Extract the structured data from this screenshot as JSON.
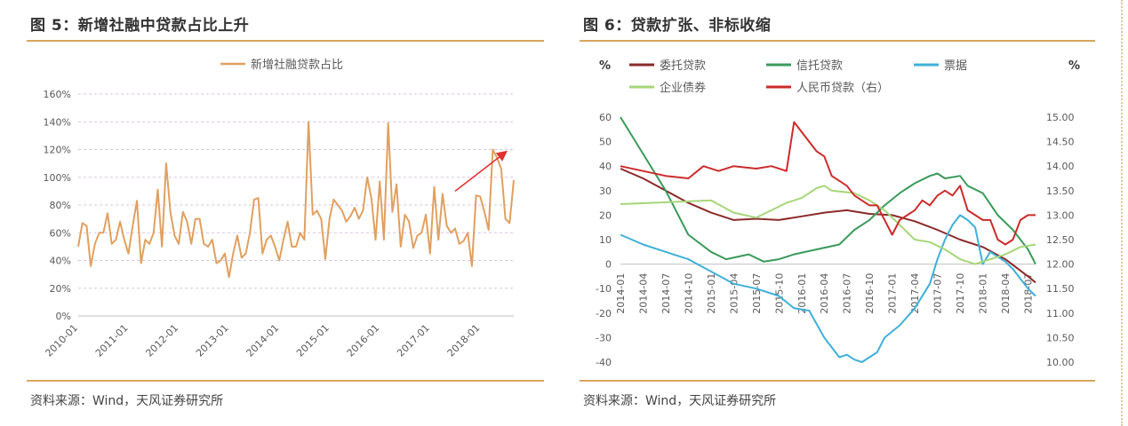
{
  "left": {
    "title": "图 5：新增社融中贷款占比上升",
    "source": "资料来源：Wind，天风证券研究所"
  },
  "right": {
    "title": "图 6：贷款扩张、非标收缩",
    "source": "资料来源：Wind，天风证券研究所"
  },
  "chart_data": [
    {
      "type": "line",
      "title": "",
      "legend": "top-center",
      "grid": true,
      "ylim": [
        0,
        160
      ],
      "y_ticks": [
        "0%",
        "20%",
        "40%",
        "60%",
        "80%",
        "100%",
        "120%",
        "140%",
        "160%"
      ],
      "x_ticks": [
        "2010-01",
        "2011-01",
        "2012-01",
        "2013-01",
        "2014-01",
        "2015-01",
        "2016-01",
        "2017-01",
        "2018-01"
      ],
      "series": [
        {
          "name": "新增社融贷款占比",
          "color": "#e0a060",
          "x_start": "2010-01",
          "x_step": "month",
          "values": [
            50,
            67,
            65,
            36,
            52,
            60,
            60,
            74,
            52,
            55,
            68,
            55,
            45,
            65,
            83,
            38,
            55,
            52,
            60,
            91,
            50,
            110,
            75,
            58,
            52,
            75,
            68,
            52,
            70,
            70,
            52,
            50,
            55,
            38,
            40,
            45,
            28,
            45,
            58,
            42,
            45,
            60,
            84,
            85,
            45,
            55,
            58,
            50,
            40,
            55,
            68,
            50,
            50,
            60,
            55,
            140,
            73,
            76,
            70,
            41,
            70,
            84,
            80,
            76,
            68,
            72,
            78,
            70,
            76,
            100,
            85,
            55,
            97,
            55,
            139,
            75,
            95,
            50,
            73,
            68,
            49,
            58,
            60,
            73,
            45,
            93,
            55,
            88,
            65,
            60,
            63,
            52,
            54,
            60,
            36,
            87,
            86,
            75,
            62,
            120,
            114,
            106,
            70,
            67,
            98
          ]
        }
      ],
      "annotations": [
        {
          "type": "arrow",
          "from": [
            "2017-07",
            90
          ],
          "to": [
            "2018-07",
            118
          ],
          "color": "#e03030"
        }
      ]
    },
    {
      "type": "line",
      "title": "",
      "legend": "top",
      "grid": false,
      "y_left_label": "%",
      "y_right_label": "%",
      "y_left_lim": [
        -40,
        60
      ],
      "y_right_lim": [
        10.0,
        15.0
      ],
      "y_left_ticks": [
        60,
        50,
        40,
        30,
        20,
        10,
        0,
        -10,
        -20,
        -30,
        -40
      ],
      "y_right_ticks": [
        "15.00",
        "14.50",
        "14.00",
        "13.50",
        "13.00",
        "12.50",
        "12.00",
        "11.50",
        "11.00",
        "10.50",
        "10.00"
      ],
      "x_ticks": [
        "2014-01",
        "2014-04",
        "2014-07",
        "2014-10",
        "2015-01",
        "2015-04",
        "2015-07",
        "2015-10",
        "2016-01",
        "2016-04",
        "2016-07",
        "2016-10",
        "2017-01",
        "2017-04",
        "2017-07",
        "2017-10",
        "2018-01",
        "2018-04",
        "2018-07"
      ],
      "series": [
        {
          "name": "委托贷款",
          "axis": "left",
          "color": "#8b2a2a",
          "points": [
            [
              0,
              39
            ],
            [
              3,
              35
            ],
            [
              6,
              30
            ],
            [
              9,
              25
            ],
            [
              12,
              21
            ],
            [
              15,
              18
            ],
            [
              18,
              18.5
            ],
            [
              21,
              18
            ],
            [
              24,
              19.5
            ],
            [
              27,
              21
            ],
            [
              30,
              22
            ],
            [
              33,
              20.5
            ],
            [
              36,
              20
            ],
            [
              39,
              17.5
            ],
            [
              42,
              14
            ],
            [
              45,
              10
            ],
            [
              48,
              7
            ],
            [
              51,
              2
            ],
            [
              54,
              -5
            ],
            [
              55,
              -7.5
            ]
          ]
        },
        {
          "name": "信托贷款",
          "axis": "left",
          "color": "#3a9a5a",
          "points": [
            [
              0,
              60
            ],
            [
              3,
              45
            ],
            [
              6,
              30
            ],
            [
              9,
              12
            ],
            [
              12,
              5
            ],
            [
              14,
              2
            ],
            [
              17,
              4
            ],
            [
              19,
              1
            ],
            [
              21,
              2
            ],
            [
              23,
              4
            ],
            [
              26,
              6
            ],
            [
              29,
              8
            ],
            [
              31,
              14
            ],
            [
              33,
              18
            ],
            [
              35,
              24
            ],
            [
              37,
              29
            ],
            [
              39,
              33
            ],
            [
              41,
              36
            ],
            [
              42,
              37
            ],
            [
              43,
              35
            ],
            [
              45,
              36
            ],
            [
              46,
              32
            ],
            [
              48,
              29
            ],
            [
              50,
              20
            ],
            [
              52,
              14
            ],
            [
              54,
              6
            ],
            [
              55,
              0
            ]
          ]
        },
        {
          "name": "票据",
          "axis": "left",
          "color": "#3fb0d8",
          "points": [
            [
              0,
              12
            ],
            [
              3,
              8
            ],
            [
              6,
              5
            ],
            [
              9,
              2
            ],
            [
              12,
              -3
            ],
            [
              15,
              -8
            ],
            [
              18,
              -10
            ],
            [
              21,
              -13
            ],
            [
              23,
              -18
            ],
            [
              25,
              -19
            ],
            [
              27,
              -30
            ],
            [
              29,
              -38
            ],
            [
              30,
              -37
            ],
            [
              31,
              -39
            ],
            [
              32,
              -40
            ],
            [
              34,
              -36
            ],
            [
              35,
              -30
            ],
            [
              37,
              -25
            ],
            [
              39,
              -18
            ],
            [
              41,
              -8
            ],
            [
              42,
              2
            ],
            [
              43,
              10
            ],
            [
              44,
              16
            ],
            [
              45,
              20
            ],
            [
              46,
              18
            ],
            [
              47,
              15
            ],
            [
              48,
              0
            ],
            [
              49,
              5
            ],
            [
              50,
              3
            ],
            [
              51,
              1
            ],
            [
              52,
              -2
            ],
            [
              53,
              -6
            ],
            [
              54,
              -10
            ],
            [
              55,
              -13
            ]
          ]
        },
        {
          "name": "企业债券",
          "axis": "left",
          "color": "#a6d679",
          "points": [
            [
              0,
              24.5
            ],
            [
              4,
              25
            ],
            [
              8,
              25.5
            ],
            [
              12,
              26
            ],
            [
              15,
              21
            ],
            [
              18,
              19
            ],
            [
              20,
              22
            ],
            [
              22,
              25
            ],
            [
              24,
              27
            ],
            [
              26,
              31
            ],
            [
              27,
              32
            ],
            [
              28,
              30
            ],
            [
              31,
              29
            ],
            [
              33,
              26
            ],
            [
              35,
              22
            ],
            [
              37,
              16
            ],
            [
              39,
              10
            ],
            [
              41,
              9
            ],
            [
              43,
              6
            ],
            [
              45,
              2
            ],
            [
              47,
              0
            ],
            [
              49,
              2
            ],
            [
              51,
              4
            ],
            [
              53,
              7
            ],
            [
              55,
              8
            ]
          ]
        },
        {
          "name": "人民币贷款（右）",
          "axis": "right",
          "color": "#cc2b2b",
          "points": [
            [
              0,
              14.0
            ],
            [
              3,
              13.9
            ],
            [
              6,
              13.8
            ],
            [
              9,
              13.75
            ],
            [
              11,
              14.0
            ],
            [
              13,
              13.9
            ],
            [
              15,
              14.0
            ],
            [
              18,
              13.95
            ],
            [
              20,
              14.0
            ],
            [
              22,
              13.9
            ],
            [
              23,
              14.9
            ],
            [
              25,
              14.5
            ],
            [
              26,
              14.3
            ],
            [
              27,
              14.2
            ],
            [
              28,
              13.8
            ],
            [
              30,
              13.6
            ],
            [
              31,
              13.4
            ],
            [
              33,
              13.2
            ],
            [
              34,
              13.2
            ],
            [
              35,
              12.9
            ],
            [
              36,
              12.6
            ],
            [
              37,
              12.9
            ],
            [
              38,
              13.0
            ],
            [
              39,
              13.1
            ],
            [
              40,
              13.3
            ],
            [
              41,
              13.2
            ],
            [
              42,
              13.4
            ],
            [
              43,
              13.5
            ],
            [
              44,
              13.4
            ],
            [
              45,
              13.6
            ],
            [
              46,
              13.1
            ],
            [
              47,
              13.0
            ],
            [
              48,
              12.9
            ],
            [
              49,
              12.9
            ],
            [
              50,
              12.5
            ],
            [
              51,
              12.4
            ],
            [
              52,
              12.5
            ],
            [
              53,
              12.9
            ],
            [
              54,
              13.0
            ],
            [
              55,
              13.0
            ]
          ]
        }
      ]
    }
  ]
}
